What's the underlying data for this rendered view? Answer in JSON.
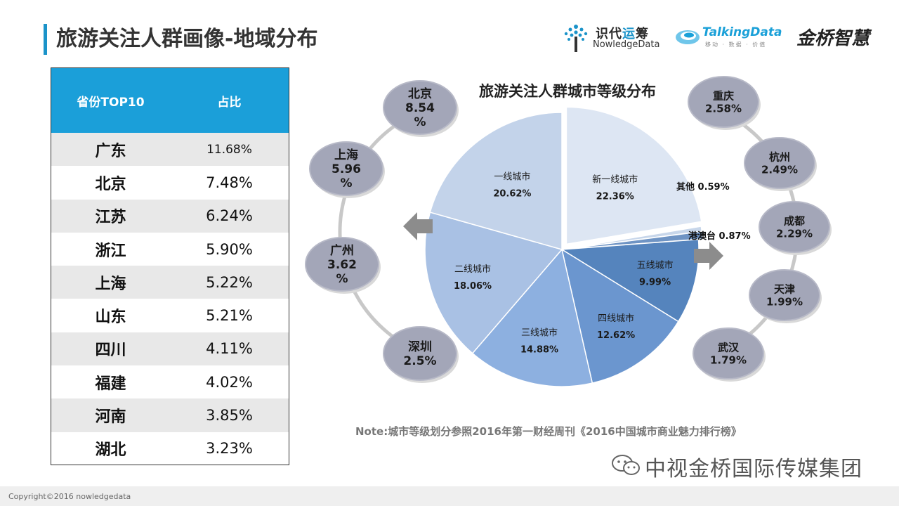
{
  "page_title": "旅游关注人群画像-地域分布",
  "logos": {
    "nowledge_cn_a": "识代",
    "nowledge_cn_b": "运",
    "nowledge_cn_c": "筹",
    "nowledge_en": "NowledgeData",
    "talkingdata_en": "TalkingData",
    "talkingdata_sub": "移动 · 数据 · 价值",
    "jinqiao": "金桥智慧"
  },
  "table": {
    "headers": [
      "省份TOP10",
      "占比"
    ],
    "rows": [
      {
        "province": "广东",
        "share": "11.68%"
      },
      {
        "province": "北京",
        "share": "7.48%"
      },
      {
        "province": "江苏",
        "share": "6.24%"
      },
      {
        "province": "浙江",
        "share": "5.90%"
      },
      {
        "province": "上海",
        "share": "5.22%"
      },
      {
        "province": "山东",
        "share": "5.21%"
      },
      {
        "province": "四川",
        "share": "4.11%"
      },
      {
        "province": "福建",
        "share": "4.02%"
      },
      {
        "province": "河南",
        "share": "3.85%"
      },
      {
        "province": "湖北",
        "share": "3.23%"
      }
    ]
  },
  "chart_data": {
    "type": "pie",
    "title": "旅游关注人群城市等级分布",
    "slices": [
      {
        "label": "新一线城市",
        "value": 22.36,
        "text": "22.36%",
        "color": "#dde6f3"
      },
      {
        "label": "其他",
        "value": 0.59,
        "text": "0.59%",
        "color": "#c7d6ea"
      },
      {
        "label": "港澳台",
        "value": 0.87,
        "text": "0.87%",
        "color": "#6f94c4"
      },
      {
        "label": "五线城市",
        "value": 9.99,
        "text": "9.99%",
        "color": "#5584bd"
      },
      {
        "label": "四线城市",
        "value": 12.62,
        "text": "12.62%",
        "color": "#6b96cf"
      },
      {
        "label": "三线城市",
        "value": 14.88,
        "text": "14.88%",
        "color": "#8db0e0"
      },
      {
        "label": "二线城市",
        "value": 18.06,
        "text": "18.06%",
        "color": "#a9c1e4"
      },
      {
        "label": "一线城市",
        "value": 20.62,
        "text": "20.62%",
        "color": "#c3d3ea"
      }
    ],
    "left_cities": [
      {
        "name": "北京",
        "value": "8.54",
        "unit": "%"
      },
      {
        "name": "上海",
        "value": "5.96",
        "unit": "%"
      },
      {
        "name": "广州",
        "value": "3.62",
        "unit": "%"
      },
      {
        "name": "深圳",
        "value": "2.5%",
        "unit": ""
      }
    ],
    "right_cities": [
      {
        "name": "重庆",
        "value": "2.58%"
      },
      {
        "name": "杭州",
        "value": "2.49%"
      },
      {
        "name": "成都",
        "value": "2.29%"
      },
      {
        "name": "天津",
        "value": "1.99%"
      },
      {
        "name": "武汉",
        "value": "1.79%"
      }
    ]
  },
  "note": "Note:城市等级划分参照2016年第一财经周刊《2016中国城市商业魅力排行榜》",
  "watermark": "中视金桥国际传媒集团",
  "copyright": "Copyright©2016 nowledgedata"
}
